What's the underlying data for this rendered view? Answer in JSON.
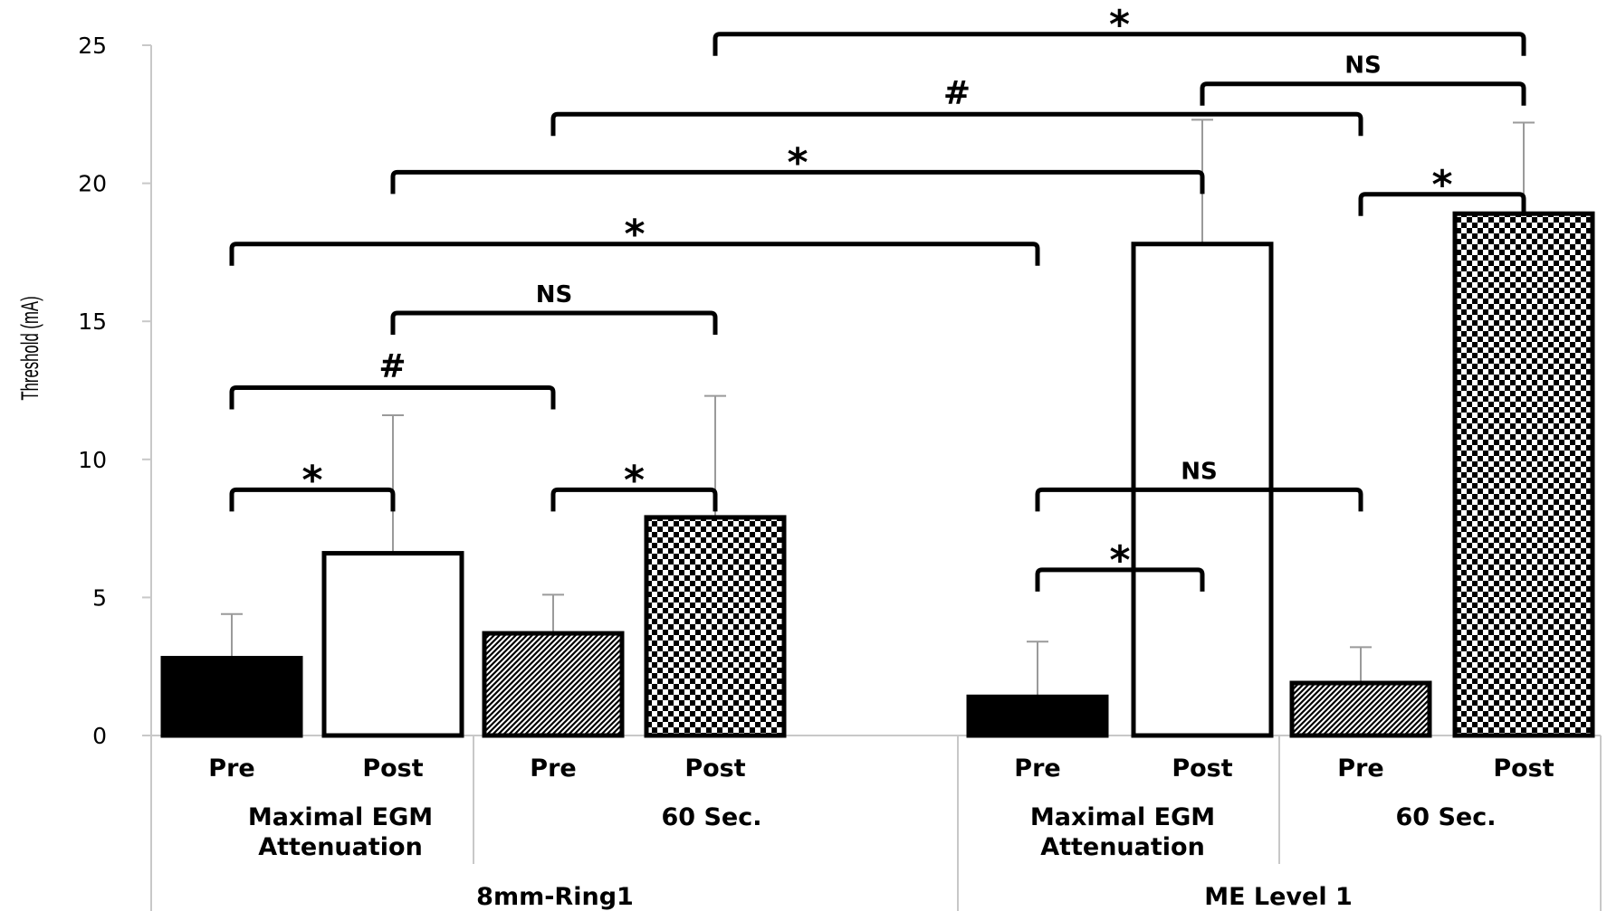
{
  "chart_data": {
    "type": "bar",
    "title": "",
    "ylabel": "Threshold (mA)",
    "ylim": [
      0,
      25
    ],
    "yticks": [
      0,
      5,
      10,
      15,
      20,
      25
    ],
    "grid": false,
    "legend": "none",
    "groups": [
      {
        "name": "8mm-Ring1",
        "subgroups": [
          {
            "name_lines": [
              "Maximal EGM",
              "Attenuation"
            ],
            "phases": [
              "Pre",
              "Post"
            ]
          },
          {
            "name_lines": [
              "60 Sec."
            ],
            "phases": [
              "Pre",
              "Post"
            ]
          }
        ]
      },
      {
        "name": "ME Level 1",
        "subgroups": [
          {
            "name_lines": [
              "Maximal EGM",
              "Attenuation"
            ],
            "phases": [
              "Pre",
              "Post"
            ]
          },
          {
            "name_lines": [
              "60 Sec."
            ],
            "phases": [
              "Pre",
              "Post"
            ]
          }
        ]
      }
    ],
    "bars": [
      {
        "group": "8mm-Ring1",
        "condition": "Maximal EGM Attenuation",
        "phase": "Pre",
        "value": 2.8,
        "error": 1.6,
        "fill": "solid-black"
      },
      {
        "group": "8mm-Ring1",
        "condition": "Maximal EGM Attenuation",
        "phase": "Post",
        "value": 6.6,
        "error": 5.0,
        "fill": "white"
      },
      {
        "group": "8mm-Ring1",
        "condition": "60 Sec.",
        "phase": "Pre",
        "value": 3.7,
        "error": 1.4,
        "fill": "diagonal-hatch"
      },
      {
        "group": "8mm-Ring1",
        "condition": "60 Sec.",
        "phase": "Post",
        "value": 7.9,
        "error": 4.4,
        "fill": "checker"
      },
      {
        "group": "ME Level 1",
        "condition": "Maximal EGM Attenuation",
        "phase": "Pre",
        "value": 1.4,
        "error": 2.0,
        "fill": "solid-black"
      },
      {
        "group": "ME Level 1",
        "condition": "Maximal EGM Attenuation",
        "phase": "Post",
        "value": 17.8,
        "error": 4.5,
        "fill": "white"
      },
      {
        "group": "ME Level 1",
        "condition": "60 Sec.",
        "phase": "Pre",
        "value": 1.9,
        "error": 1.3,
        "fill": "diagonal-hatch"
      },
      {
        "group": "ME Level 1",
        "condition": "60 Sec.",
        "phase": "Post",
        "value": 18.9,
        "error": 3.3,
        "fill": "checker"
      }
    ],
    "significance": [
      {
        "from": 0,
        "to": 1,
        "y": 8.9,
        "label": "*"
      },
      {
        "from": 2,
        "to": 3,
        "y": 8.9,
        "label": "*"
      },
      {
        "from": 0,
        "to": 2,
        "y": 12.6,
        "label": "#"
      },
      {
        "from": 1,
        "to": 3,
        "y": 15.3,
        "label": "NS"
      },
      {
        "from": 0,
        "to": 4,
        "y": 17.8,
        "label": "*"
      },
      {
        "from": 1,
        "to": 5,
        "y": 20.4,
        "label": "*"
      },
      {
        "from": 2,
        "to": 6,
        "y": 22.5,
        "label": "#"
      },
      {
        "from": 3,
        "to": 7,
        "y": 25.4,
        "label": "*"
      },
      {
        "from": 5,
        "to": 7,
        "y": 23.6,
        "label": "NS"
      },
      {
        "from": 6,
        "to": 7,
        "y": 19.6,
        "label": "*"
      },
      {
        "from": 4,
        "to": 5,
        "y": 6.0,
        "label": "*"
      },
      {
        "from": 4,
        "to": 6,
        "y": 8.9,
        "label": "NS"
      }
    ]
  }
}
